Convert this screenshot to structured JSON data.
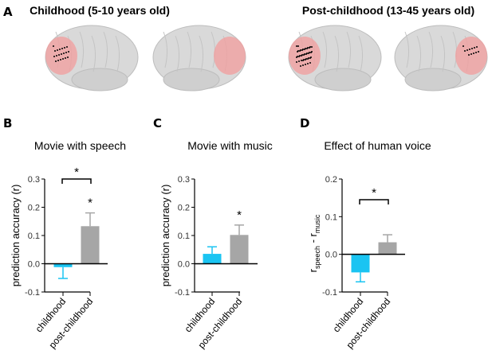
{
  "panel_a": {
    "label": "A",
    "left_title": "Childhood  (5-10 years old)",
    "right_title": "Post-childhood (13-45 years old)"
  },
  "colors": {
    "childhood": "#1ac4f2",
    "post_childhood": "#a6a6a6",
    "highlight": "#f0a0a0"
  },
  "chart_data": [
    {
      "panel": "B",
      "type": "bar",
      "title": "Movie with speech",
      "ylabel": "prediction accuracy (r)",
      "ylim": [
        -0.1,
        0.3
      ],
      "yticks": [
        "-0.1",
        "0.0",
        "0.1",
        "0.2",
        "0.3"
      ],
      "categories": [
        "childhood",
        "post-childhood"
      ],
      "values": [
        -0.012,
        0.133
      ],
      "errors": [
        0.04,
        0.047
      ],
      "bar_stars": [
        "",
        "*"
      ],
      "comparison_star": "*"
    },
    {
      "panel": "C",
      "type": "bar",
      "title": "Movie with music",
      "ylabel": "prediction accuracy (r)",
      "ylim": [
        -0.1,
        0.3
      ],
      "yticks": [
        "-0.1",
        "0.0",
        "0.1",
        "0.2",
        "0.3"
      ],
      "categories": [
        "childhood",
        "post-childhood"
      ],
      "values": [
        0.035,
        0.102
      ],
      "errors": [
        0.025,
        0.035
      ],
      "bar_stars": [
        "",
        "*"
      ],
      "comparison_star": ""
    },
    {
      "panel": "D",
      "type": "bar",
      "title": "Effect of human voice",
      "ylabel": "r",
      "ylabel_sub1": "speech",
      "ylabel_mid": " - r",
      "ylabel_sub2": "music",
      "ylim": [
        -0.1,
        0.2
      ],
      "yticks": [
        "-0.1",
        "0.0",
        "0.1",
        "0.2"
      ],
      "categories": [
        "childhood",
        "post-childhood"
      ],
      "values": [
        -0.048,
        0.032
      ],
      "errors": [
        0.025,
        0.02
      ],
      "bar_stars": [
        "",
        ""
      ],
      "comparison_star": "*"
    }
  ]
}
